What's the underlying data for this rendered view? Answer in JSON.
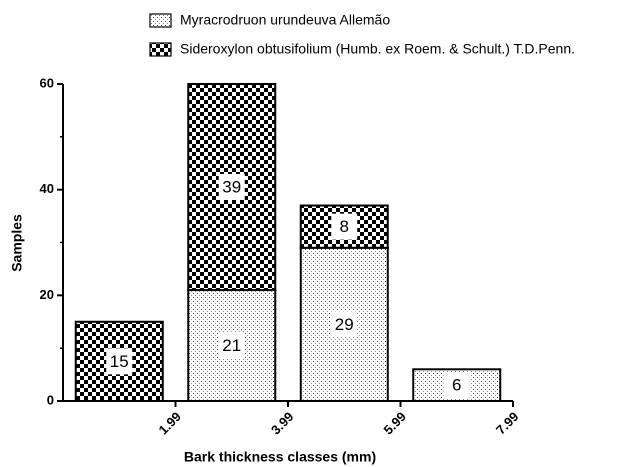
{
  "chart_data": {
    "type": "stacked_bar",
    "x_label": "Bark thickness classes (mm)",
    "y_label": "Samples",
    "categories": [
      "1.99",
      "3.99",
      "5.99",
      "7.99"
    ],
    "series": [
      {
        "name": "Myracrodruon urundeuva Allemão",
        "pattern": "dots",
        "color": "#000000",
        "values": [
          null,
          21,
          29,
          6
        ]
      },
      {
        "name": "Sideroxylon obtusifolium (Humb. ex Roem. & Schult.) T.D.Penn.",
        "pattern": "checker",
        "color": "#000000",
        "values": [
          15,
          39,
          8,
          null
        ]
      }
    ],
    "ylim": [
      0,
      60
    ],
    "yticks": [
      0,
      20,
      40,
      60
    ],
    "grid": false
  }
}
